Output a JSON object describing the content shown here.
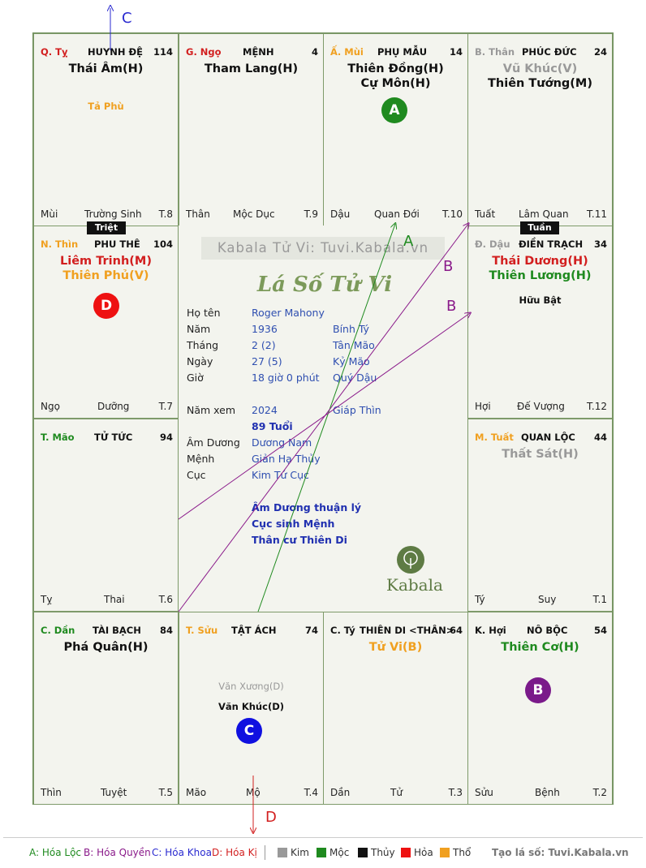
{
  "palaces": [
    {
      "branch": "Q. Tỵ",
      "branch_color": "#d21f1f",
      "name": "HUYNH ĐỆ",
      "num": "114",
      "stars": [
        {
          "text": "Thái Âm(H)",
          "color": "#111"
        }
      ],
      "minor": [
        {
          "text": "Tả Phù",
          "color": "#f0a020"
        }
      ],
      "f1": "Mùi",
      "f2": "Trường Sinh",
      "f3": "T.8"
    },
    {
      "branch": "G. Ngọ",
      "branch_color": "#d21f1f",
      "name": "MỆNH",
      "num": "4",
      "stars": [
        {
          "text": "Tham Lang(H)",
          "color": "#111"
        }
      ],
      "minor": [],
      "f1": "Thân",
      "f2": "Mộc Dục",
      "f3": "T.9"
    },
    {
      "branch": "Ấ. Mùi",
      "branch_color": "#f0a020",
      "name": "PHỤ MẪU",
      "num": "14",
      "stars": [
        {
          "text": "Thiên Đồng(H)",
          "color": "#111"
        },
        {
          "text": "Cự Môn(H)",
          "color": "#111"
        }
      ],
      "minor": [],
      "f1": "Dậu",
      "f2": "Quan Đới",
      "f3": "T.10"
    },
    {
      "branch": "B. Thân",
      "branch_color": "#999999",
      "name": "PHÚC ĐỨC",
      "num": "24",
      "stars": [
        {
          "text": "Vũ Khúc(V)",
          "color": "#999999"
        },
        {
          "text": "Thiên Tướng(M)",
          "color": "#111"
        }
      ],
      "minor": [],
      "f1": "Tuất",
      "f2": "Lâm Quan",
      "f3": "T.11"
    },
    {
      "branch": "N. Thìn",
      "branch_color": "#f0a020",
      "name": "PHU THÊ",
      "num": "104",
      "stars": [
        {
          "text": "Liêm Trinh(M)",
          "color": "#d21f1f"
        },
        {
          "text": "Thiên Phủ(V)",
          "color": "#f0a020"
        }
      ],
      "minor": [],
      "f1": "Ngọ",
      "f2": "Dưỡng",
      "f3": "T.7"
    },
    {
      "branch": "Đ. Dậu",
      "branch_color": "#999999",
      "name": "ĐIỀN TRẠCH",
      "num": "34",
      "stars": [
        {
          "text": "Thái Dương(H)",
          "color": "#d21f1f"
        },
        {
          "text": "Thiên Lương(H)",
          "color": "#1f8a1f"
        }
      ],
      "minor": [
        {
          "text": "Hữu Bật",
          "color": "#111"
        }
      ],
      "f1": "Hợi",
      "f2": "Đế Vượng",
      "f3": "T.12"
    },
    {
      "branch": "T. Mão",
      "branch_color": "#1f8a1f",
      "name": "TỬ TỨC",
      "num": "94",
      "stars": [],
      "minor": [],
      "f1": "Tỵ",
      "f2": "Thai",
      "f3": "T.6"
    },
    {
      "branch": "M. Tuất",
      "branch_color": "#f0a020",
      "name": "QUAN LỘC",
      "num": "44",
      "stars": [
        {
          "text": "Thất Sát(H)",
          "color": "#999999"
        }
      ],
      "minor": [],
      "f1": "Tý",
      "f2": "Suy",
      "f3": "T.1"
    },
    {
      "branch": "C. Dần",
      "branch_color": "#1f8a1f",
      "name": "TÀI BẠCH",
      "num": "84",
      "stars": [
        {
          "text": "Phá Quân(H)",
          "color": "#111"
        }
      ],
      "minor": [],
      "f1": "Thìn",
      "f2": "Tuyệt",
      "f3": "T.5"
    },
    {
      "branch": "T. Sửu",
      "branch_color": "#f0a020",
      "name": "TẬT ÁCH",
      "num": "74",
      "stars": [],
      "minor": [
        {
          "text": "Văn Xương(D)",
          "color": "#999999"
        },
        {
          "text": "Văn Khúc(D)",
          "color": "#111"
        }
      ],
      "f1": "Mão",
      "f2": "Mộ",
      "f3": "T.4"
    },
    {
      "branch": "C. Tý",
      "branch_color": "#111",
      "name": "THIÊN DI <THÂN>",
      "num": "64",
      "stars": [
        {
          "text": "Tử Vi(B)",
          "color": "#f0a020"
        }
      ],
      "minor": [],
      "f1": "Dần",
      "f2": "Tử",
      "f3": "T.3"
    },
    {
      "branch": "K. Hợi",
      "branch_color": "#111",
      "name": "NÔ BỘC",
      "num": "54",
      "stars": [
        {
          "text": "Thiên Cơ(H)",
          "color": "#1f8a1f"
        }
      ],
      "minor": [],
      "f1": "Sửu",
      "f2": "Bệnh",
      "f3": "T.2"
    }
  ],
  "badges": {
    "triet": "Triệt",
    "tuan": "Tuần"
  },
  "circles": {
    "a": "A",
    "b": "B",
    "c": "C",
    "d": "D"
  },
  "arrow_labels": {
    "c": "C",
    "a": "A",
    "b1": "B",
    "b2": "B",
    "d": "D"
  },
  "center": {
    "watermark": "Kabala Tử Vi: Tuvi.Kabala.vn",
    "title": "Lá Số Tử Vi",
    "rows": [
      {
        "label": "Họ tên",
        "value": "Roger Mahony",
        "extra": ""
      },
      {
        "label": "Năm",
        "value": "1936",
        "extra": "Bính Tý"
      },
      {
        "label": "Tháng",
        "value": "2  (2)",
        "extra": "Tân Mão"
      },
      {
        "label": "Ngày",
        "value": "27  (5)",
        "extra": "Kỷ Mão"
      },
      {
        "label": "Giờ",
        "value": "18 giờ 0 phút",
        "extra": "Quý Dậu"
      },
      {
        "label": "Năm xem",
        "value": "2024",
        "extra": "Giáp Thìn"
      },
      {
        "label": "",
        "value": "89 Tuổi",
        "extra": ""
      },
      {
        "label": "Âm Dương",
        "value": "Dương Nam",
        "extra": ""
      },
      {
        "label": "Mệnh",
        "value": "Giản Hạ Thủy",
        "extra": ""
      },
      {
        "label": "Cục",
        "value": "Kim Tứ Cục",
        "extra": ""
      }
    ],
    "notes": [
      "Âm Dương thuận lý",
      "Cục sinh Mệnh",
      "Thân cư Thiên Di"
    ],
    "logo_text": "Kabala"
  },
  "footer": {
    "a": "A: Hóa Lộc",
    "b": "B: Hóa Quyền",
    "c": "C: Hóa Khoa",
    "d": "D: Hóa Kị",
    "kim": "Kim",
    "moc": "Mộc",
    "thuy": "Thủy",
    "hoa": "Hỏa",
    "tho": "Thổ",
    "site": "Tạo lá số: Tuvi.Kabala.vn",
    "colors": {
      "kim": "#999999",
      "moc": "#1f8a1f",
      "thuy": "#111111",
      "hoa": "#ee1111",
      "tho": "#f0a020"
    }
  }
}
